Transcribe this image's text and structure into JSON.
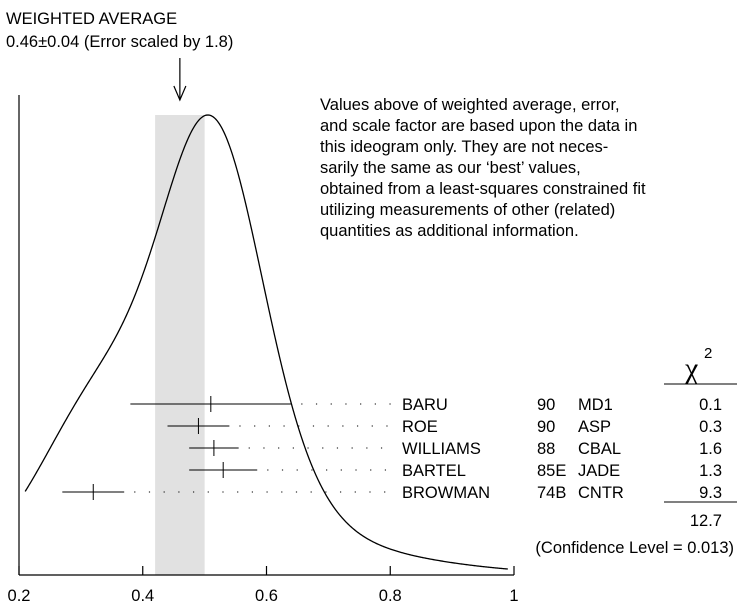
{
  "chart_data": {
    "type": "ideogram",
    "title": "WEIGHTED AVERAGE",
    "subtitle": "0.46±0.04 (Error scaled by 1.8)",
    "weighted_average": 0.46,
    "weighted_error": 0.04,
    "scale_factor": 1.8,
    "x_ticks": [
      "0.2",
      "0.4",
      "0.6",
      "0.8",
      "1"
    ],
    "xlim": [
      0.2,
      1.0
    ],
    "note_lines": [
      "Values above of weighted average, error,",
      "and scale factor are based upon the data in",
      "this ideogram only.  They are not neces-",
      "sarily the same as our ‘best’ values,",
      "obtained from a least-squares constrained fit",
      "utilizing measurements of other (related)",
      "quantities as additional information."
    ],
    "chi2_header": "χ",
    "chi2_header_sup": "2",
    "measurements": [
      {
        "author": "BARU",
        "year": "90",
        "experiment": "MD1",
        "value": 0.51,
        "lo": 0.38,
        "hi": 0.64,
        "chi2": "0.1"
      },
      {
        "author": "ROE",
        "year": "90",
        "experiment": "ASP",
        "value": 0.49,
        "lo": 0.44,
        "hi": 0.54,
        "chi2": "0.3"
      },
      {
        "author": "WILLIAMS",
        "year": "88",
        "experiment": "CBAL",
        "value": 0.515,
        "lo": 0.475,
        "hi": 0.555,
        "chi2": "1.6"
      },
      {
        "author": "BARTEL",
        "year": "85E",
        "experiment": "JADE",
        "value": 0.53,
        "lo": 0.475,
        "hi": 0.585,
        "chi2": "1.3"
      },
      {
        "author": "BROWMAN",
        "year": "74B",
        "experiment": "CNTR",
        "value": 0.32,
        "lo": 0.27,
        "hi": 0.37,
        "chi2": "9.3"
      }
    ],
    "chi2_total": "12.7",
    "confidence_level": "(Confidence Level = 0.013)"
  }
}
